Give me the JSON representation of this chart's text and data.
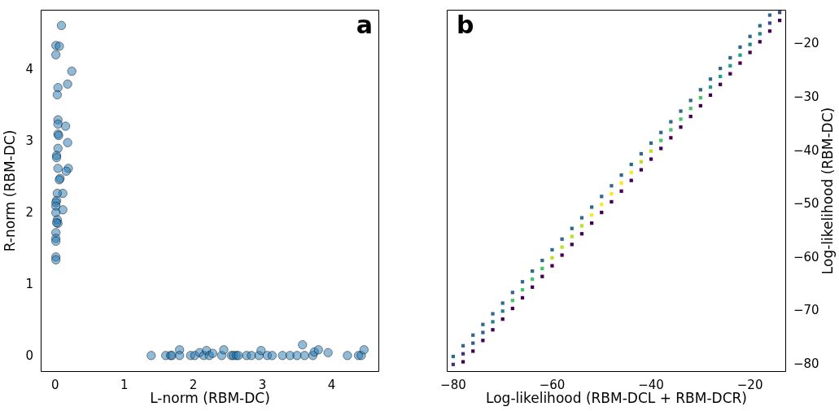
{
  "chart_data": [
    {
      "type": "scatter",
      "xlabel": "L-norm (RBM-DC)",
      "ylabel": "R-norm (RBM-DC)",
      "annotations": [
        "a"
      ],
      "marker": "circle",
      "grid": false,
      "legend": false,
      "xlim": [
        -0.21,
        4.69
      ],
      "xticks": [
        0,
        1,
        2,
        3,
        4
      ],
      "ylim": [
        -0.22,
        4.85
      ],
      "yticks": [
        0,
        1,
        2,
        3,
        4
      ],
      "series": [
        {
          "color": "#1f77b4",
          "x": [
            0.09,
            0.01,
            0.06,
            0.01,
            0.24,
            0.18,
            0.04,
            0.03,
            0.04,
            0.04,
            0.15,
            0.04,
            0.05,
            0.18,
            0.04,
            0.02,
            0.02,
            0.04,
            0.19,
            0.16,
            0.07,
            0.06,
            0.11,
            0.03,
            0.02,
            0.01,
            0.01,
            0.11,
            0.01,
            0.03,
            0.04,
            0.02,
            0.01,
            0.01,
            0.01,
            0.01,
            0.01,
            1.39,
            1.6,
            1.67,
            1.69,
            1.8,
            1.8,
            1.96,
            2.02,
            2.09,
            2.15,
            2.19,
            2.23,
            2.28,
            2.41,
            2.44,
            2.55,
            2.58,
            2.62,
            2.65,
            2.77,
            2.84,
            2.95,
            2.98,
            3.07,
            3.14,
            3.29,
            3.4,
            3.5,
            3.58,
            3.61,
            3.73,
            3.75,
            3.81,
            3.95,
            4.23,
            4.39,
            4.43,
            4.47
          ],
          "values": [
            4.63,
            4.35,
            4.34,
            4.22,
            3.99,
            3.81,
            3.76,
            3.66,
            3.31,
            3.25,
            3.22,
            3.11,
            3.09,
            2.99,
            2.91,
            2.81,
            2.78,
            2.63,
            2.63,
            2.59,
            2.49,
            2.47,
            2.28,
            2.28,
            2.18,
            2.15,
            2.1,
            2.05,
            2.01,
            1.91,
            1.86,
            1.87,
            1.73,
            1.65,
            1.61,
            1.39,
            1.35,
            0.01,
            0.01,
            0.01,
            0.01,
            0.09,
            0.01,
            0.01,
            0.01,
            0.05,
            0.01,
            0.08,
            0.01,
            0.04,
            0.01,
            0.09,
            0.01,
            0.01,
            0.01,
            0.01,
            0.01,
            0.01,
            0.01,
            0.08,
            0.01,
            0.01,
            0.01,
            0.01,
            0.01,
            0.16,
            0.01,
            0.01,
            0.06,
            0.09,
            0.05,
            0.01,
            0.01,
            0.01,
            0.09
          ]
        }
      ]
    },
    {
      "type": "scatter",
      "xlabel": "Log-likelihood (RBM-DCL + RBM-DCR)",
      "y2label": "Log-likelihood (RBM-DC)",
      "annotations": [
        "b"
      ],
      "marker": "square",
      "grid": false,
      "legend": false,
      "tick_labels": "xy2",
      "xlim": [
        -81.3,
        -12.7
      ],
      "xticks": [
        {
          "value": -80,
          "label": "−80"
        },
        {
          "value": -60,
          "label": "−60"
        },
        {
          "value": -40,
          "label": "−40"
        },
        {
          "value": -20,
          "label": "−20"
        }
      ],
      "y2lim": [
        -81.4,
        -13.5
      ],
      "y2ticks": [
        {
          "value": -80,
          "label": "−80"
        },
        {
          "value": -70,
          "label": "−70"
        },
        {
          "value": -60,
          "label": "−60"
        },
        {
          "value": -50,
          "label": "−50"
        },
        {
          "value": -40,
          "label": "−40"
        },
        {
          "value": -30,
          "label": "−30"
        },
        {
          "value": -20,
          "label": "−20"
        }
      ],
      "series": [
        {
          "axis": "y2",
          "x": [
            -80,
            -78,
            -76,
            -74,
            -72,
            -70,
            -68,
            -66,
            -64,
            -62,
            -60,
            -58,
            -56,
            -54,
            -52,
            -50,
            -48,
            -46,
            -44,
            -42,
            -40,
            -38,
            -36,
            -34,
            -32,
            -30,
            -28,
            -26,
            -24,
            -22,
            -20,
            -18,
            -16,
            -14
          ],
          "values": [
            -80,
            -78,
            -76,
            -74,
            -72,
            -70,
            -68,
            -66,
            -64,
            -62,
            -60,
            -58,
            -56,
            -54,
            -52,
            -50,
            -48,
            -46,
            -44,
            -42,
            -40,
            -38,
            -36,
            -34,
            -32,
            -30,
            -28,
            -26,
            -24,
            -22,
            -20,
            -18,
            -16,
            -14
          ],
          "colors": [
            "#46327e",
            "#46327e",
            "#365c8d",
            "#365c8d",
            "#277f8e",
            "#277f8e",
            "#4ac16d",
            "#4ac16d",
            "#4ac16d",
            "#4ac16d",
            "#bddf26",
            "#bddf26",
            "#bddf26",
            "#bddf26",
            "#fde725",
            "#fde725",
            "#fde725",
            "#fde725",
            "#fde725",
            "#bddf26",
            "#bddf26",
            "#4ac16d",
            "#4ac16d",
            "#4ac16d",
            "#4ac16d",
            "#4ac16d",
            "#1fa187",
            "#1fa187",
            "#1fa187",
            "#1fa187",
            "#277f8e",
            "#277f8e",
            "#3e4a89",
            "#3e4a89"
          ]
        },
        {
          "axis": "y2",
          "color": "#31688e",
          "x": [
            -80,
            -78,
            -76,
            -74,
            -72,
            -70,
            -68,
            -66,
            -64,
            -62,
            -60,
            -58,
            -56,
            -54,
            -52,
            -50,
            -48,
            -46,
            -44,
            -42,
            -40,
            -38,
            -36,
            -34,
            -32,
            -30,
            -28,
            -26,
            -24,
            -22,
            -20,
            -18,
            -16
          ],
          "values": [
            -78.5,
            -76.5,
            -74.5,
            -72.5,
            -70.5,
            -68.5,
            -66.5,
            -64.5,
            -62.5,
            -60.5,
            -58.5,
            -56.5,
            -54.5,
            -52.5,
            -50.5,
            -48.5,
            -46.5,
            -44.5,
            -42.5,
            -40.5,
            -38.5,
            -36.5,
            -34.5,
            -32.5,
            -30.5,
            -28.5,
            -26.5,
            -24.5,
            -22.5,
            -20.5,
            -18.5,
            -16.5,
            -14.5
          ]
        },
        {
          "axis": "y2",
          "color": "#440154",
          "x": [
            -78,
            -76,
            -74,
            -72,
            -70,
            -68,
            -66,
            -64,
            -62,
            -60,
            -58,
            -56,
            -54,
            -52,
            -50,
            -48,
            -46,
            -44,
            -42,
            -40,
            -38,
            -36,
            -34,
            -32,
            -30,
            -28,
            -26,
            -24,
            -22,
            -20,
            -18,
            -16,
            -14
          ],
          "values": [
            -79.5,
            -77.5,
            -75.5,
            -73.5,
            -71.5,
            -69.5,
            -67.5,
            -65.5,
            -63.5,
            -61.5,
            -59.5,
            -57.5,
            -55.5,
            -53.5,
            -51.5,
            -49.5,
            -47.5,
            -45.5,
            -43.5,
            -41.5,
            -39.5,
            -37.5,
            -35.5,
            -33.5,
            -31.5,
            -29.5,
            -27.5,
            -25.5,
            -23.5,
            -21.5,
            -19.5,
            -17.5,
            -15.5
          ]
        }
      ]
    }
  ]
}
